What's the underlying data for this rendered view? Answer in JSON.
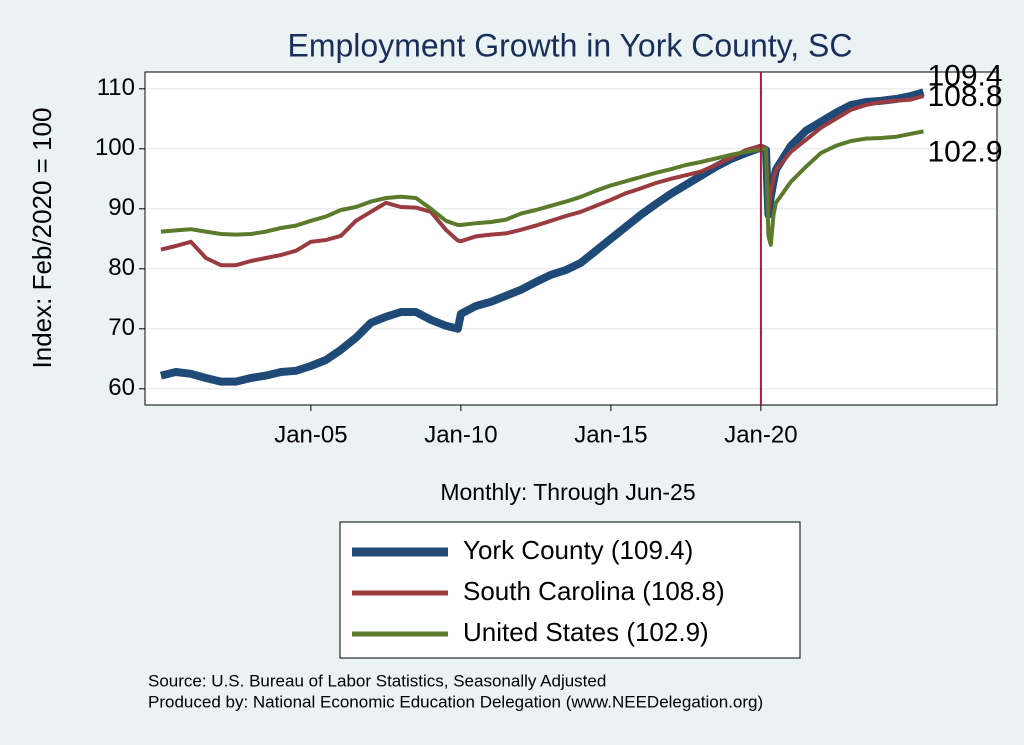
{
  "chart_data": {
    "type": "line",
    "title": "Employment Growth in York  County, SC",
    "xlabel": "Monthly: Through Jun-25",
    "ylabel": "Index: Feb/2020 = 100",
    "source": [
      "Source: U.S. Bureau of Labor Statistics, Seasonally Adjusted",
      "Produced by: National Economic Education Delegation (www.NEEDelegation.org)"
    ],
    "x": [
      2000,
      2000.5,
      2001,
      2001.5,
      2002,
      2002.5,
      2003,
      2003.5,
      2004,
      2004.5,
      2005,
      2005.5,
      2006,
      2006.5,
      2007,
      2007.5,
      2008,
      2008.5,
      2009,
      2009.5,
      2009.9,
      2010,
      2010.5,
      2011,
      2011.5,
      2012,
      2012.5,
      2013,
      2013.5,
      2014,
      2014.5,
      2015,
      2015.5,
      2016,
      2016.5,
      2017,
      2017.5,
      2018,
      2018.5,
      2019,
      2019.5,
      2020,
      2020.17,
      2020.25,
      2020.33,
      2020.42,
      2020.5,
      2021,
      2021.5,
      2022,
      2022.5,
      2023,
      2023.5,
      2024,
      2024.5,
      2025,
      2025.42
    ],
    "series": [
      {
        "name": "York  County (109.4)",
        "color": "#1f4a78",
        "values": [
          62.2,
          62.8,
          62.5,
          61.8,
          61.2,
          61.2,
          61.8,
          62.2,
          62.8,
          63.0,
          63.8,
          64.8,
          66.5,
          68.5,
          71.0,
          72.0,
          72.8,
          72.8,
          71.5,
          70.5,
          70.0,
          72.5,
          73.8,
          74.5,
          75.5,
          76.5,
          77.8,
          79.0,
          79.8,
          81.0,
          83.0,
          85.0,
          87.0,
          89.0,
          90.8,
          92.5,
          94.0,
          95.5,
          97.0,
          98.3,
          99.3,
          100.2,
          99.8,
          89.0,
          92.0,
          94.5,
          96.5,
          100.5,
          103.0,
          104.5,
          106.0,
          107.3,
          107.8,
          108.0,
          108.3,
          108.8,
          109.4
        ]
      },
      {
        "name": "South Carolina (108.8)",
        "color": "#9a3b3f",
        "values": [
          83.2,
          83.8,
          84.5,
          81.8,
          80.6,
          80.6,
          81.3,
          81.8,
          82.3,
          83.0,
          84.5,
          84.8,
          85.5,
          88.0,
          89.5,
          91.0,
          90.3,
          90.2,
          89.5,
          86.5,
          84.7,
          84.6,
          85.4,
          85.7,
          85.9,
          86.5,
          87.2,
          88.0,
          88.8,
          89.5,
          90.5,
          91.5,
          92.6,
          93.4,
          94.3,
          95.0,
          95.6,
          96.2,
          97.3,
          98.5,
          99.8,
          100.5,
          100.0,
          89.5,
          93.0,
          95.0,
          96.5,
          99.5,
          101.5,
          103.5,
          105.0,
          106.5,
          107.3,
          107.8,
          108.0,
          108.2,
          108.8
        ]
      },
      {
        "name": "United States (102.9)",
        "color": "#5b7b2c",
        "values": [
          86.2,
          86.4,
          86.6,
          86.2,
          85.8,
          85.7,
          85.8,
          86.2,
          86.8,
          87.2,
          88.0,
          88.7,
          89.8,
          90.3,
          91.2,
          91.8,
          92.0,
          91.8,
          90.0,
          88.0,
          87.3,
          87.3,
          87.6,
          87.8,
          88.2,
          89.2,
          89.8,
          90.5,
          91.2,
          92.0,
          93.0,
          93.9,
          94.6,
          95.3,
          96.0,
          96.6,
          97.3,
          97.8,
          98.4,
          99.0,
          99.5,
          99.9,
          100.0,
          85.5,
          84.0,
          89.0,
          91.0,
          94.5,
          97.0,
          99.3,
          100.5,
          101.3,
          101.7,
          101.8,
          102.0,
          102.5,
          102.9
        ]
      }
    ],
    "xlim": [
      1999.47,
      2027.87
    ],
    "ylim": [
      57.3,
      112.8
    ],
    "xticks": [
      {
        "value": 2005,
        "label": "Jan-05"
      },
      {
        "value": 2010,
        "label": "Jan-10"
      },
      {
        "value": 2015,
        "label": "Jan-15"
      },
      {
        "value": 2020,
        "label": "Jan-20"
      }
    ],
    "yticks": [
      60,
      70,
      80,
      90,
      100,
      110
    ],
    "grid": true,
    "vline": {
      "x": 2020,
      "color": "#a0203c"
    }
  }
}
